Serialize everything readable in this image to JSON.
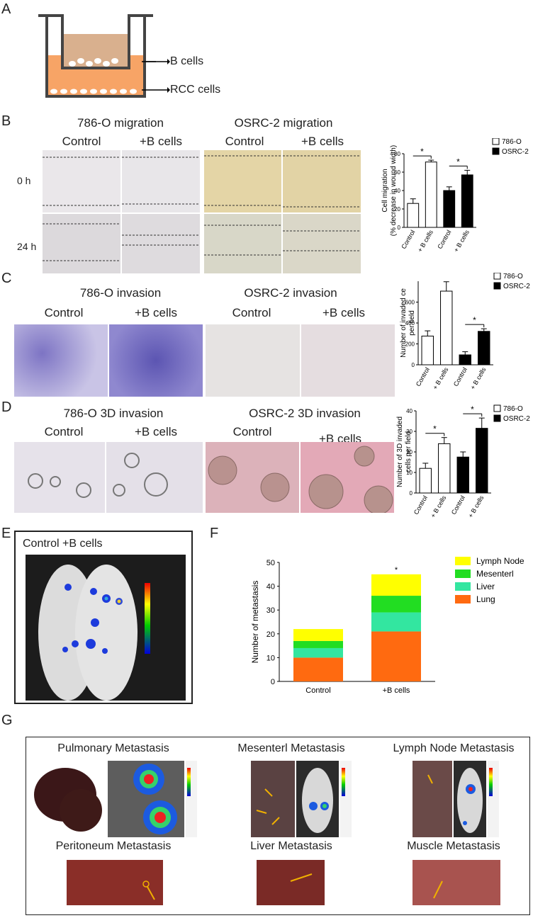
{
  "panels": {
    "A": {
      "letter": "A",
      "label_b": "B cells",
      "label_rcc": "RCC cells"
    },
    "B": {
      "letter": "B",
      "title_786": "786-O migration",
      "title_osrc": "OSRC-2 migration",
      "col_control": "Control",
      "col_bcells": "+B cells",
      "row_0h": "0 h",
      "row_24h": "24 h"
    },
    "C": {
      "letter": "C",
      "title_786": "786-O invasion",
      "title_osrc": "OSRC-2 invasion",
      "col_control": "Control",
      "col_bcells": "+B cells"
    },
    "D": {
      "letter": "D",
      "title_786": "786-O  3D invasion",
      "title_osrc": "OSRC-2  3D invasion",
      "col_control": "Control",
      "col_bcells": "+B cells"
    },
    "E": {
      "letter": "E",
      "title": "Control +B cells"
    },
    "F": {
      "letter": "F"
    },
    "G": {
      "letter": "G",
      "items": [
        "Pulmonary Metastasis",
        "Mesenterl Metastasis",
        "Lymph Node Metastasis",
        "Peritoneum Metastasis",
        "Liver Metastasis",
        "Muscle Metastasis"
      ]
    }
  },
  "colors": {
    "786O": "#ffffff",
    "OSRC2": "#000000",
    "lymph": "#ffff00",
    "mesenterl": "#22dd22",
    "liver": "#33e6a0",
    "lung": "#ff6a10"
  },
  "chart_data": [
    {
      "id": "B",
      "type": "bar",
      "ylabel": "Cell migration\n(% decrease in wound width)",
      "ylim": [
        0,
        80
      ],
      "yticks": [
        0,
        20,
        40,
        60,
        80
      ],
      "categories": [
        "Control",
        "+ B cells",
        "Control",
        "+ B cells"
      ],
      "series": [
        {
          "name": "786-O",
          "values": [
            26,
            71,
            null,
            null
          ],
          "errors": [
            5,
            2,
            null,
            null
          ]
        },
        {
          "name": "OSRC-2",
          "values": [
            null,
            null,
            40,
            57
          ],
          "errors": [
            null,
            null,
            4,
            5
          ]
        }
      ],
      "significance": [
        "*",
        "*"
      ],
      "legend": [
        "786-O",
        "OSRC-2"
      ],
      "legend_position": "right"
    },
    {
      "id": "C",
      "type": "bar",
      "ylabel": "Number of invaded ce\nper field",
      "ylim": [
        0,
        800
      ],
      "yticks": [
        0,
        200,
        400,
        600
      ],
      "categories": [
        "Control",
        "+ B cells",
        "Control",
        "+ B cells"
      ],
      "series": [
        {
          "name": "786-O",
          "values": [
            275,
            705,
            null,
            null
          ],
          "errors": [
            50,
            90,
            null,
            null
          ]
        },
        {
          "name": "OSRC-2",
          "values": [
            null,
            null,
            95,
            320
          ],
          "errors": [
            null,
            null,
            30,
            25
          ]
        }
      ],
      "significance": [
        "*"
      ],
      "legend": [
        "786-O",
        "OSRC-2"
      ],
      "legend_position": "right"
    },
    {
      "id": "D",
      "type": "bar",
      "ylabel": "Number of 3D invaded\ncells per field",
      "ylim": [
        0,
        40
      ],
      "yticks": [
        0,
        10,
        20,
        30,
        40
      ],
      "categories": [
        "Control",
        "+ B cells",
        "Control",
        "+ B cells"
      ],
      "series": [
        {
          "name": "786-O",
          "values": [
            12,
            24,
            null,
            null
          ],
          "errors": [
            2.5,
            3,
            null,
            null
          ]
        },
        {
          "name": "OSRC-2",
          "values": [
            null,
            null,
            17.5,
            31.5
          ],
          "errors": [
            null,
            null,
            2.5,
            5
          ]
        }
      ],
      "significance": [
        "*",
        "*"
      ],
      "legend": [
        "786-O",
        "OSRC-2"
      ],
      "legend_position": "right"
    },
    {
      "id": "F",
      "type": "bar",
      "stacked": true,
      "ylabel": "Number of metastasis",
      "ylim": [
        0,
        50
      ],
      "yticks": [
        0,
        10,
        20,
        30,
        40,
        50
      ],
      "categories": [
        "Control",
        "+B cells"
      ],
      "series": [
        {
          "name": "Lung",
          "values": [
            10,
            21
          ]
        },
        {
          "name": "Liver",
          "values": [
            4,
            8
          ]
        },
        {
          "name": "Mesenterl",
          "values": [
            3,
            7
          ]
        },
        {
          "name": "Lymph Node",
          "values": [
            5,
            9
          ]
        }
      ],
      "significance": [
        null,
        "*"
      ],
      "legend": [
        "Lymph Node",
        "Mesenterl",
        "Liver",
        "Lung"
      ],
      "legend_position": "right"
    }
  ]
}
